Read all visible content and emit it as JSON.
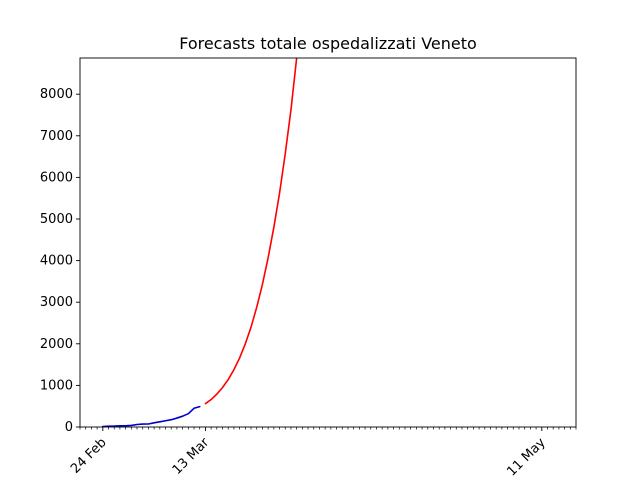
{
  "chart_data": {
    "type": "line",
    "title": "Forecasts totale ospedalizzati Veneto",
    "xlabel": "",
    "ylabel": "",
    "x_axis": {
      "type": "date",
      "range": [
        "2020-02-20",
        "2020-05-17"
      ],
      "tick_labels": [
        {
          "date": "2020-02-24",
          "label": "24 Feb"
        },
        {
          "date": "2020-03-13",
          "label": "13 Mar"
        },
        {
          "date": "2020-05-11",
          "label": "11 May"
        }
      ],
      "minor_ticks": "daily"
    },
    "y_axis": {
      "range": [
        0,
        8870
      ],
      "ticks": [
        0,
        1000,
        2000,
        3000,
        4000,
        5000,
        6000,
        7000,
        8000
      ]
    },
    "grid": false,
    "legend": "none",
    "series": [
      {
        "role": "observed",
        "color": "#0000cc",
        "points": [
          [
            "2020-02-24",
            12
          ],
          [
            "2020-02-25",
            20
          ],
          [
            "2020-02-26",
            22
          ],
          [
            "2020-02-27",
            28
          ],
          [
            "2020-02-28",
            30
          ],
          [
            "2020-02-29",
            38
          ],
          [
            "2020-03-01",
            60
          ],
          [
            "2020-03-02",
            70
          ],
          [
            "2020-03-03",
            72
          ],
          [
            "2020-03-04",
            100
          ],
          [
            "2020-03-05",
            125
          ],
          [
            "2020-03-06",
            150
          ],
          [
            "2020-03-07",
            175
          ],
          [
            "2020-03-08",
            215
          ],
          [
            "2020-03-09",
            260
          ],
          [
            "2020-03-10",
            320
          ],
          [
            "2020-03-11",
            450
          ],
          [
            "2020-03-12",
            490
          ]
        ]
      },
      {
        "role": "forecast",
        "color": "#ff0000",
        "points": [
          [
            "2020-03-13",
            560
          ],
          [
            "2020-03-14",
            660
          ],
          [
            "2020-03-15",
            790
          ],
          [
            "2020-03-16",
            950
          ],
          [
            "2020-03-17",
            1140
          ],
          [
            "2020-03-18",
            1380
          ],
          [
            "2020-03-19",
            1660
          ],
          [
            "2020-03-20",
            2000
          ],
          [
            "2020-03-21",
            2400
          ],
          [
            "2020-03-22",
            2880
          ],
          [
            "2020-03-23",
            3430
          ],
          [
            "2020-03-24",
            4070
          ],
          [
            "2020-03-25",
            4800
          ],
          [
            "2020-03-26",
            5620
          ],
          [
            "2020-03-27",
            6570
          ],
          [
            "2020-03-28",
            7620
          ],
          [
            "2020-03-29",
            8870
          ]
        ]
      }
    ]
  }
}
